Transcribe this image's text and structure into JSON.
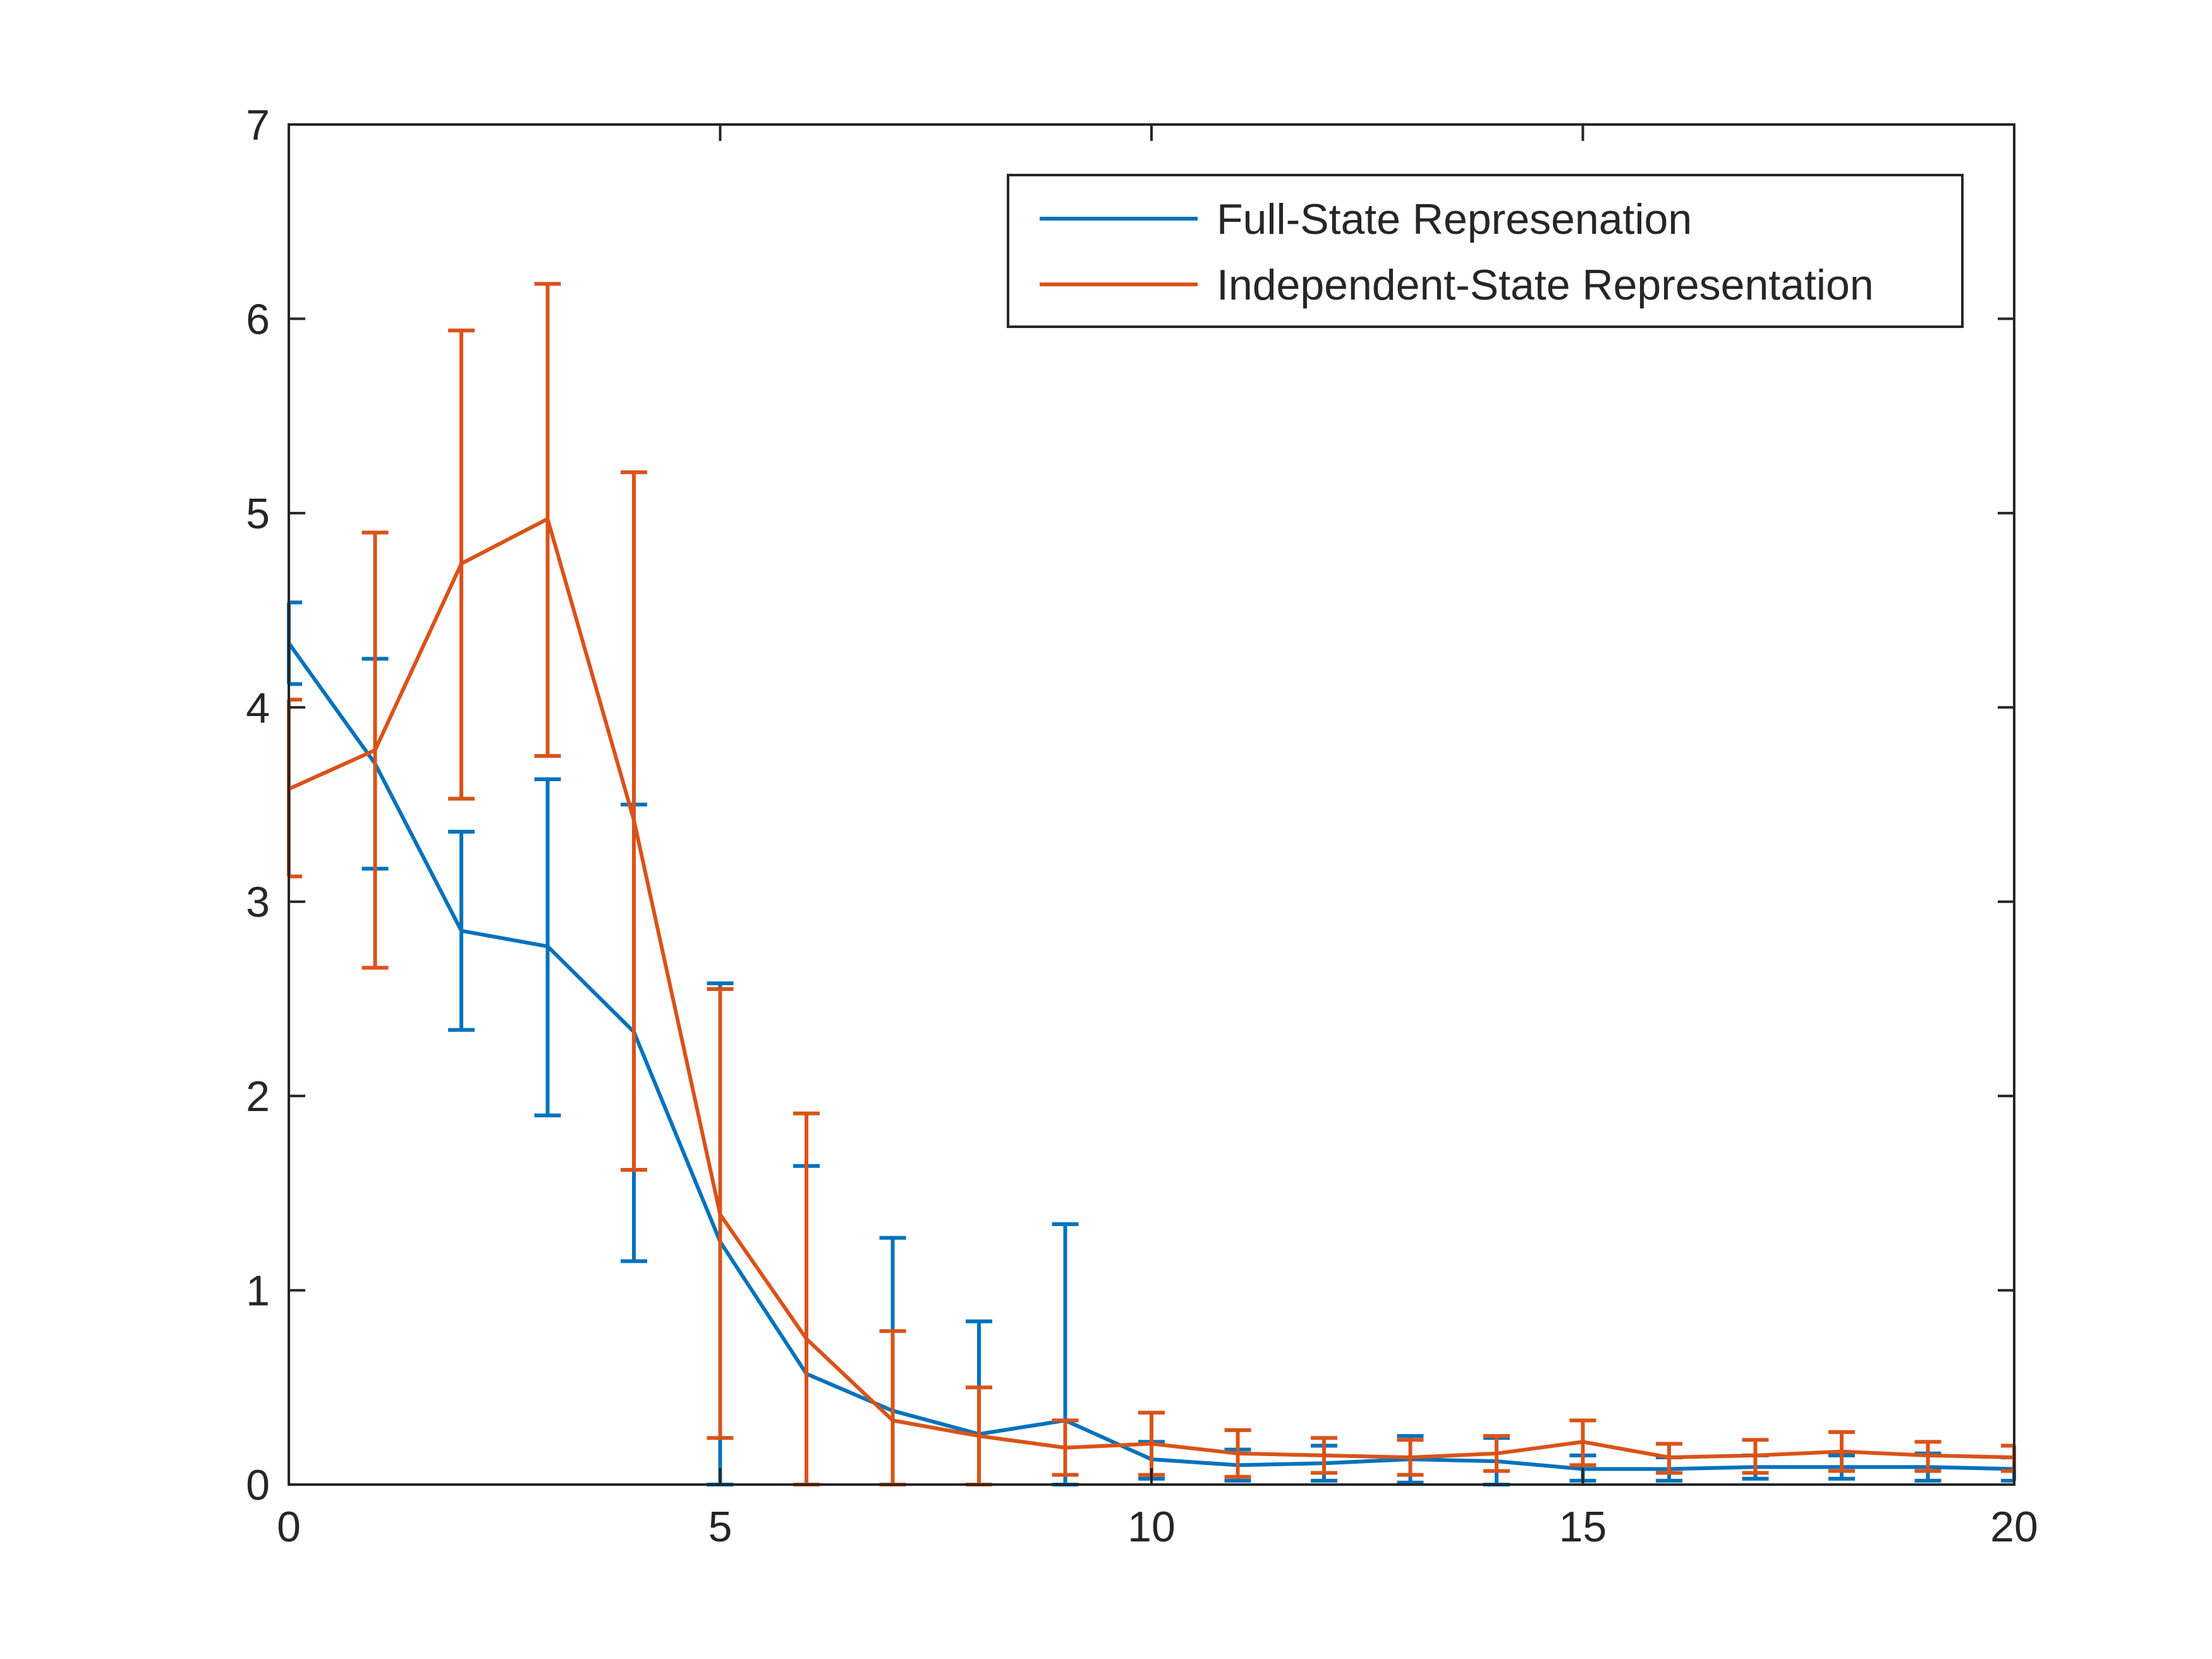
{
  "chart_data": {
    "type": "line",
    "title": "",
    "xlabel": "",
    "ylabel": "",
    "xlim": [
      0,
      20
    ],
    "ylim": [
      0,
      7
    ],
    "xticks": [
      0,
      5,
      10,
      15,
      20
    ],
    "yticks": [
      0,
      1,
      2,
      3,
      4,
      5,
      6,
      7
    ],
    "grid": false,
    "legend_position": "top-right",
    "x": [
      0,
      1,
      2,
      3,
      4,
      5,
      6,
      7,
      8,
      9,
      10,
      11,
      12,
      13,
      14,
      15,
      16,
      17,
      18,
      19,
      20
    ],
    "series": [
      {
        "name": "Full-State Represenation",
        "color": "#0072BD",
        "values": [
          4.33,
          3.71,
          2.85,
          2.77,
          2.33,
          1.25,
          0.57,
          0.38,
          0.26,
          0.33,
          0.13,
          0.1,
          0.11,
          0.13,
          0.12,
          0.08,
          0.08,
          0.09,
          0.09,
          0.09,
          0.08
        ],
        "lower": [
          4.12,
          3.17,
          2.34,
          1.9,
          1.15,
          0.0,
          0.0,
          0.0,
          0.0,
          0.0,
          0.03,
          0.02,
          0.02,
          0.01,
          0.0,
          0.02,
          0.02,
          0.03,
          0.03,
          0.02,
          0.02
        ],
        "upper": [
          4.54,
          4.25,
          3.36,
          3.63,
          3.5,
          2.58,
          1.64,
          1.27,
          0.84,
          1.34,
          0.22,
          0.18,
          0.2,
          0.25,
          0.24,
          0.15,
          0.14,
          0.15,
          0.15,
          0.16,
          0.14
        ]
      },
      {
        "name": "Independent-State Representation",
        "color": "#D95319",
        "values": [
          3.58,
          3.78,
          4.74,
          4.97,
          3.42,
          1.39,
          0.75,
          0.33,
          0.25,
          0.19,
          0.21,
          0.16,
          0.15,
          0.14,
          0.16,
          0.22,
          0.14,
          0.15,
          0.17,
          0.15,
          0.14
        ],
        "lower": [
          3.13,
          2.66,
          3.53,
          3.75,
          1.62,
          0.24,
          0.0,
          0.0,
          0.0,
          0.05,
          0.05,
          0.04,
          0.06,
          0.05,
          0.07,
          0.1,
          0.06,
          0.06,
          0.07,
          0.07,
          0.07
        ],
        "upper": [
          4.04,
          4.9,
          5.94,
          6.18,
          5.21,
          2.55,
          1.91,
          0.79,
          0.5,
          0.33,
          0.37,
          0.28,
          0.24,
          0.23,
          0.25,
          0.33,
          0.21,
          0.23,
          0.27,
          0.22,
          0.2
        ]
      }
    ]
  }
}
